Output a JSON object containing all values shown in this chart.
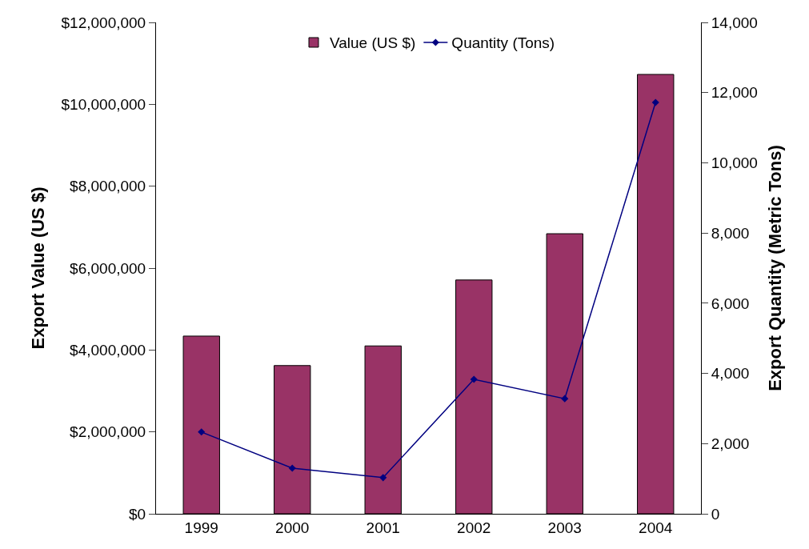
{
  "chart_data": {
    "type": "bar",
    "xlabel": null,
    "ylabel": "Export Value (US $)",
    "y2label": "Export Quantity (Metric Tons)",
    "categories": [
      "1999",
      "2000",
      "2001",
      "2002",
      "2003",
      "2004"
    ],
    "series": [
      {
        "name": "Value (US $)",
        "color": "#993366",
        "values": [
          4340000,
          3620000,
          4100000,
          5710000,
          6840000,
          10730000
        ]
      },
      {
        "name": "Quantity (Tons)",
        "type": "line",
        "axis": "y2",
        "color": "#000080",
        "marker": "diamond",
        "values": [
          2330,
          1300,
          1030,
          3830,
          3280,
          11720
        ]
      }
    ],
    "ylim": [
      0,
      12000000
    ],
    "yticks": [
      {
        "value": 0,
        "label": "$0"
      },
      {
        "value": 2000000,
        "label": "$2,000,000"
      },
      {
        "value": 4000000,
        "label": "$4,000,000"
      },
      {
        "value": 6000000,
        "label": "$6,000,000"
      },
      {
        "value": 8000000,
        "label": "$8,000,000"
      },
      {
        "value": 10000000,
        "label": "$10,000,000"
      },
      {
        "value": 12000000,
        "label": "$12,000,000"
      }
    ],
    "y2lim": [
      0,
      14000
    ],
    "y2ticks": [
      0,
      {
        "value": 2000,
        "label": "2,000"
      },
      {
        "value": 4000,
        "label": "4,000"
      },
      {
        "value": 6000,
        "label": "6,000"
      },
      {
        "value": 8000,
        "label": "8,000"
      },
      {
        "value": 10000,
        "label": "10,000"
      },
      {
        "value": 12000,
        "label": "12,000"
      },
      {
        "value": 14000,
        "label": "14,000"
      }
    ],
    "grid": false,
    "legend": "top"
  }
}
